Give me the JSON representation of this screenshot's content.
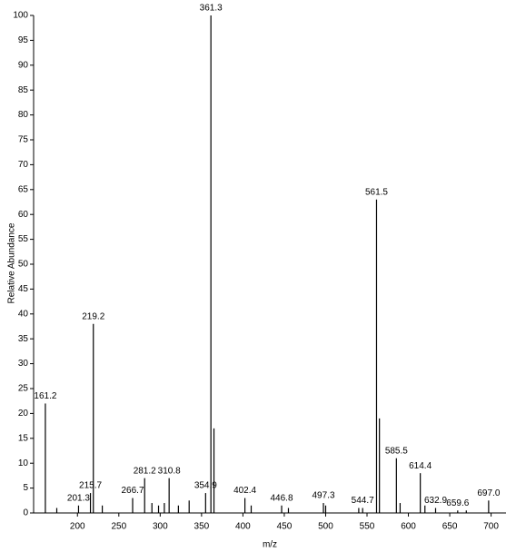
{
  "chart_data": {
    "type": "stick",
    "x_label": "m/z",
    "y_label": "Relative Abundance",
    "xlim": [
      147,
      718
    ],
    "ylim": [
      0,
      100
    ],
    "xticks": [
      200,
      250,
      300,
      350,
      400,
      450,
      500,
      550,
      600,
      650,
      700
    ],
    "yticks": [
      0,
      5,
      10,
      15,
      20,
      25,
      30,
      35,
      40,
      45,
      50,
      55,
      60,
      65,
      70,
      75,
      80,
      85,
      90,
      95,
      100
    ],
    "color": "#000000",
    "x": [
      161.2,
      201.3,
      215.7,
      219.2,
      266.7,
      281.2,
      310.8,
      354.9,
      361.3,
      402.4,
      446.8,
      497.3,
      544.7,
      561.5,
      585.5,
      614.4,
      632.9,
      659.6,
      {
        "value": 697.0,
        "label": "697.0"
      }
    ],
    "values": [
      22,
      1.5,
      4,
      38,
      3,
      7,
      7,
      4,
      100,
      3,
      1.5,
      2,
      1,
      63,
      11,
      8,
      1,
      0.5,
      2.5
    ],
    "minor_x": [
      175,
      230,
      290,
      298,
      305,
      322,
      335,
      365,
      410,
      455,
      500,
      540,
      565,
      590,
      620,
      670
    ],
    "minor_values": [
      1,
      1.5,
      2,
      1.5,
      2,
      1.5,
      2.5,
      17,
      1.5,
      1,
      1.5,
      1,
      19,
      2,
      1.5,
      0.5
    ]
  }
}
